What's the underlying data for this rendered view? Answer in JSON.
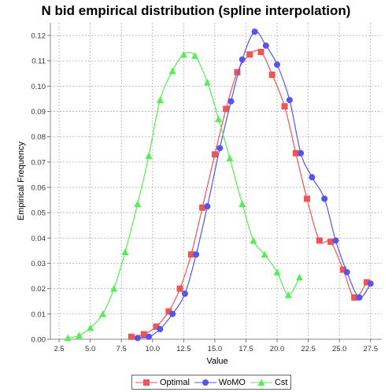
{
  "chart_data": {
    "type": "line",
    "title": "N bid empirical distribution (spline interpolation)",
    "xlabel": "Value",
    "ylabel": "Empirical Frequency",
    "xlim": [
      1.8,
      28.4
    ],
    "ylim": [
      0,
      0.125
    ],
    "x_ticks": [
      "2.5",
      "5.0",
      "7.5",
      "10.0",
      "12.5",
      "15.0",
      "17.5",
      "20.0",
      "22.5",
      "25.0",
      "27.5"
    ],
    "y_ticks": [
      "0.00",
      "0.01",
      "0.02",
      "0.03",
      "0.04",
      "0.05",
      "0.06",
      "0.07",
      "0.08",
      "0.09",
      "0.10",
      "0.11",
      "0.12"
    ],
    "grid": true,
    "legend_position": "bottom",
    "series": [
      {
        "name": "Optimal",
        "color": "#ee5555",
        "marker": "square",
        "points": [
          [
            8.3,
            0.001
          ],
          [
            9.3,
            0.002
          ],
          [
            10.3,
            0.005
          ],
          [
            11.3,
            0.011
          ],
          [
            12.2,
            0.02
          ],
          [
            13.1,
            0.0335
          ],
          [
            14.0,
            0.052
          ],
          [
            15.0,
            0.073
          ],
          [
            15.9,
            0.091
          ],
          [
            16.8,
            0.1055
          ],
          [
            17.8,
            0.1125
          ],
          [
            18.7,
            0.1135
          ],
          [
            19.6,
            0.1045
          ],
          [
            20.6,
            0.092
          ],
          [
            21.5,
            0.0735
          ],
          [
            22.4,
            0.0555
          ],
          [
            23.4,
            0.039
          ],
          [
            24.3,
            0.0385
          ],
          [
            25.3,
            0.0275
          ],
          [
            26.2,
            0.0165
          ],
          [
            27.2,
            0.0225
          ]
        ]
      },
      {
        "name": "WoMO",
        "color": "#5555ee",
        "marker": "circle",
        "points": [
          [
            8.8,
            0.0005
          ],
          [
            9.7,
            0.001
          ],
          [
            10.6,
            0.004
          ],
          [
            11.6,
            0.01
          ],
          [
            12.6,
            0.018
          ],
          [
            13.5,
            0.0335
          ],
          [
            14.4,
            0.0525
          ],
          [
            15.4,
            0.0755
          ],
          [
            16.3,
            0.094
          ],
          [
            17.2,
            0.1105
          ],
          [
            18.2,
            0.1215
          ],
          [
            19.1,
            0.116
          ],
          [
            20.0,
            0.1085
          ],
          [
            21.0,
            0.0945
          ],
          [
            21.9,
            0.0735
          ],
          [
            22.8,
            0.064
          ],
          [
            23.8,
            0.0555
          ],
          [
            24.7,
            0.039
          ],
          [
            25.6,
            0.0265
          ],
          [
            26.6,
            0.0165
          ],
          [
            27.5,
            0.022
          ]
        ]
      },
      {
        "name": "Cst",
        "color": "#55ee55",
        "marker": "triangle",
        "points": [
          [
            3.2,
            0.0005
          ],
          [
            4.1,
            0.0015
          ],
          [
            5.0,
            0.0045
          ],
          [
            6.0,
            0.01
          ],
          [
            6.9,
            0.02
          ],
          [
            7.8,
            0.0345
          ],
          [
            8.8,
            0.0535
          ],
          [
            9.7,
            0.0725
          ],
          [
            10.6,
            0.0945
          ],
          [
            11.6,
            0.106
          ],
          [
            12.5,
            0.1125
          ],
          [
            13.4,
            0.112
          ],
          [
            14.4,
            0.1015
          ],
          [
            15.3,
            0.087
          ],
          [
            16.2,
            0.0715
          ],
          [
            17.2,
            0.0535
          ],
          [
            18.1,
            0.039
          ],
          [
            19.0,
            0.0335
          ],
          [
            20.0,
            0.0265
          ],
          [
            20.9,
            0.0175
          ],
          [
            21.8,
            0.0245
          ]
        ]
      }
    ]
  }
}
